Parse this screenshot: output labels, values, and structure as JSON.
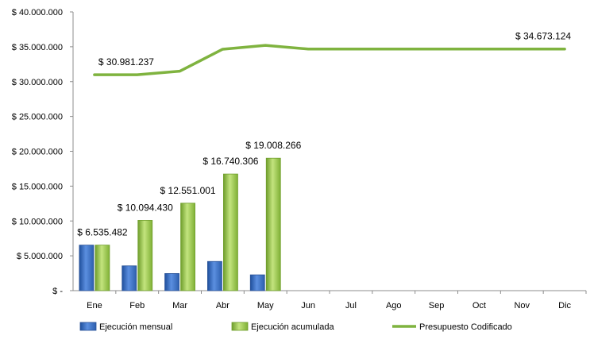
{
  "chart_data": {
    "type": "bar",
    "categories": [
      "Ene",
      "Feb",
      "Mar",
      "Abr",
      "May",
      "Jun",
      "Jul",
      "Ago",
      "Sep",
      "Oct",
      "Nov",
      "Dic"
    ],
    "ylim": [
      0,
      40000000
    ],
    "yticks": [
      0,
      5000000,
      10000000,
      15000000,
      20000000,
      25000000,
      30000000,
      35000000,
      40000000
    ],
    "ytick_labels": [
      "$ -",
      "$ 5.000.000",
      "$ 10.000.000",
      "$ 15.000.000",
      "$ 20.000.000",
      "$ 25.000.000",
      "$ 30.000.000",
      "$ 35.000.000",
      "$ 40.000.000"
    ],
    "grid": false,
    "legend_position": "bottom",
    "series": [
      {
        "name": "Ejecución mensual",
        "type": "bar",
        "color": "#3a6fc4",
        "values": [
          6535482,
          3558948,
          2456571,
          4189305,
          2267960,
          null,
          null,
          null,
          null,
          null,
          null,
          null
        ]
      },
      {
        "name": "Ejecución acumulada",
        "type": "bar",
        "color": "#92c83e",
        "values": [
          6535482,
          10094430,
          12551001,
          16740306,
          19008266,
          null,
          null,
          null,
          null,
          null,
          null,
          null
        ]
      },
      {
        "name": "Presupuesto Codificado",
        "type": "line",
        "color": "#7fb33f",
        "values": [
          30981237,
          30981237,
          31500000,
          34650000,
          35200000,
          34673124,
          34673124,
          34673124,
          34673124,
          34673124,
          34673124,
          34673124
        ]
      }
    ],
    "annotations": [
      {
        "series": 1,
        "index": 0,
        "text": "$ 6.535.482"
      },
      {
        "series": 1,
        "index": 1,
        "text": "$ 10.094.430"
      },
      {
        "series": 1,
        "index": 2,
        "text": "$ 12.551.001"
      },
      {
        "series": 1,
        "index": 3,
        "text": "$ 16.740.306"
      },
      {
        "series": 1,
        "index": 4,
        "text": "$ 19.008.266"
      },
      {
        "series": 2,
        "index": 0,
        "text": "$ 30.981.237"
      },
      {
        "series": 2,
        "index": 11,
        "text": "$ 34.673.124"
      }
    ]
  }
}
